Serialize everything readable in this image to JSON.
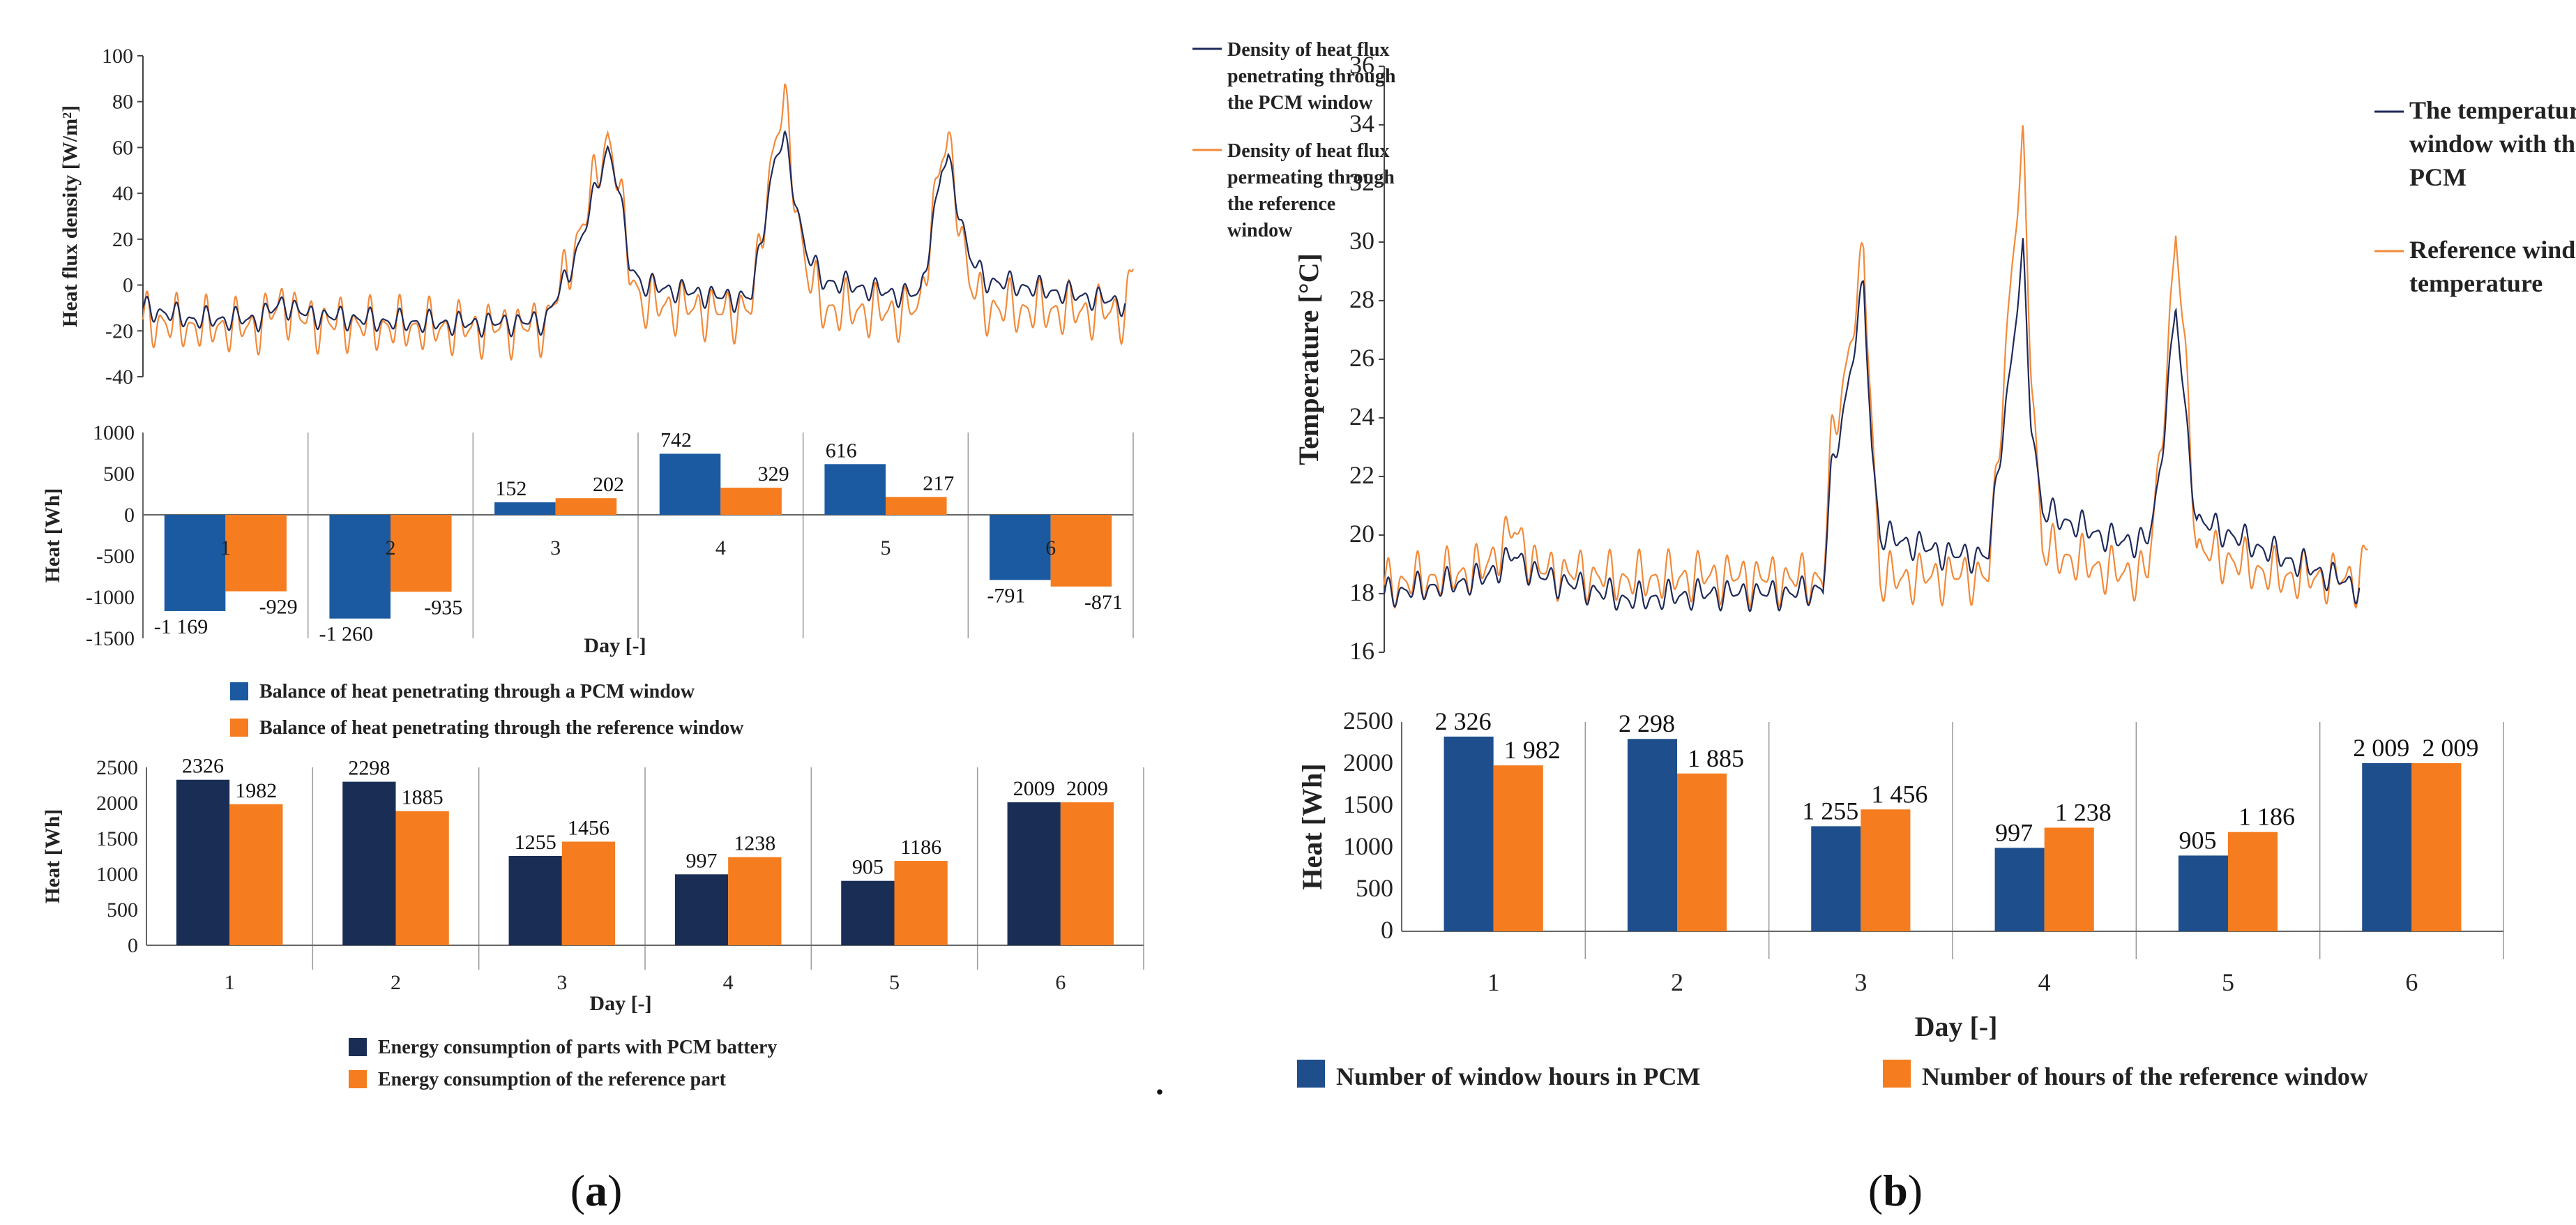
{
  "colors": {
    "pcm_line": "#1f2a5a",
    "ref_line": "#f28a3a",
    "pcm_bar_mid": "#1b5aa0",
    "pcm_bar_dark": "#1a2e55",
    "pcm_bar_b": "#1f4e8c",
    "ref_bar": "#f57c1f"
  },
  "captions": {
    "a": "(a)",
    "b": "(b)",
    "a_letter": "a",
    "b_letter": "b"
  },
  "dot": ".",
  "chart_data": [
    {
      "id": "a_heatflux",
      "type": "line",
      "ylabel": "Heat flux density  [W/m²]",
      "ylim": [
        -40,
        100
      ],
      "yticks": [
        -40,
        -20,
        0,
        20,
        40,
        60,
        80,
        100
      ],
      "grid": false,
      "x_range_days": [
        0,
        6
      ],
      "legend_position": "top-right",
      "series": [
        {
          "name": "PCM",
          "legend_lines": [
            "Density of heat flux",
            "penetrating through",
            "the PCM window"
          ],
          "baseline_points": [
            [
              0,
              -10
            ],
            [
              0.3,
              -15
            ],
            [
              0.7,
              -15
            ],
            [
              0.85,
              -8
            ],
            [
              1.0,
              -13
            ],
            [
              1.5,
              -16
            ],
            [
              2.0,
              -17
            ],
            [
              2.45,
              -16
            ],
            [
              2.6,
              5
            ],
            [
              2.7,
              25
            ],
            [
              2.78,
              45
            ],
            [
              2.84,
              60
            ],
            [
              2.9,
              45
            ],
            [
              2.97,
              10
            ],
            [
              3.05,
              0
            ],
            [
              3.6,
              -6
            ],
            [
              3.72,
              -5
            ],
            [
              3.8,
              30
            ],
            [
              3.86,
              55
            ],
            [
              3.92,
              64
            ],
            [
              3.98,
              40
            ],
            [
              4.05,
              15
            ],
            [
              4.15,
              2
            ],
            [
              4.6,
              -4
            ],
            [
              4.75,
              -4
            ],
            [
              4.82,
              25
            ],
            [
              4.88,
              50
            ],
            [
              4.92,
              55
            ],
            [
              4.98,
              35
            ],
            [
              5.05,
              12
            ],
            [
              5.15,
              2
            ],
            [
              6.0,
              -8
            ]
          ],
          "amplitude": 6
        },
        {
          "name": "Reference",
          "legend_lines": [
            "Density of heat flux",
            "permeating through",
            "the reference",
            "window"
          ],
          "baseline_points": [
            [
              0,
              -15
            ],
            [
              0.3,
              -18
            ],
            [
              0.7,
              -18
            ],
            [
              0.85,
              -8
            ],
            [
              1.0,
              -16
            ],
            [
              1.5,
              -18
            ],
            [
              2.0,
              -19
            ],
            [
              2.45,
              -18
            ],
            [
              2.6,
              8
            ],
            [
              2.7,
              30
            ],
            [
              2.78,
              50
            ],
            [
              2.84,
              65
            ],
            [
              2.9,
              48
            ],
            [
              2.97,
              8
            ],
            [
              3.05,
              -8
            ],
            [
              3.6,
              -12
            ],
            [
              3.72,
              -10
            ],
            [
              3.8,
              35
            ],
            [
              3.86,
              62
            ],
            [
              3.92,
              80
            ],
            [
              3.98,
              42
            ],
            [
              4.05,
              8
            ],
            [
              4.15,
              -10
            ],
            [
              4.6,
              -12
            ],
            [
              4.75,
              -10
            ],
            [
              4.82,
              30
            ],
            [
              4.88,
              55
            ],
            [
              4.92,
              62
            ],
            [
              4.98,
              35
            ],
            [
              5.05,
              0
            ],
            [
              5.15,
              -10
            ],
            [
              6.0,
              -12
            ],
            [
              6.05,
              8
            ]
          ],
          "amplitude": 14
        }
      ]
    },
    {
      "id": "a_balance",
      "type": "bar",
      "ylabel": "Heat [Wh]",
      "xlabel": "Day [-]",
      "ylim": [
        -1500,
        1000
      ],
      "yticks": [
        -1500,
        -1000,
        -500,
        0,
        500,
        1000
      ],
      "categories": [
        "1",
        "2",
        "3",
        "4",
        "5",
        "6"
      ],
      "legend_position": "bottom",
      "series": [
        {
          "name": "Balance of heat penetrating through a PCM window",
          "values": [
            -1169,
            -1260,
            152,
            742,
            616,
            -791
          ],
          "labels": [
            "-1 169",
            "-1 260",
            "152",
            "742",
            "616",
            "-791"
          ]
        },
        {
          "name": "Balance of heat penetrating through the reference window",
          "values": [
            -929,
            -935,
            202,
            329,
            217,
            -871
          ],
          "labels": [
            "-929",
            "-935",
            "202",
            "329",
            "217",
            "-871"
          ]
        }
      ]
    },
    {
      "id": "a_energy",
      "type": "bar",
      "ylabel": "Heat [Wh]",
      "xlabel": "Day [-]",
      "ylim": [
        0,
        2500
      ],
      "yticks": [
        0,
        500,
        1000,
        1500,
        2000,
        2500
      ],
      "categories": [
        "1",
        "2",
        "3",
        "4",
        "5",
        "6"
      ],
      "legend_position": "bottom",
      "series": [
        {
          "name": "Energy consumption of parts with PCM battery",
          "values": [
            2326,
            2298,
            1255,
            997,
            905,
            2009
          ],
          "labels": [
            "2326",
            "2298",
            "1255",
            "997",
            "905",
            "2009"
          ]
        },
        {
          "name": "Energy consumption of the reference part",
          "values": [
            1982,
            1885,
            1456,
            1238,
            1186,
            2009
          ],
          "labels": [
            "1982",
            "1885",
            "1456",
            "1238",
            "1186",
            "2009"
          ]
        }
      ]
    },
    {
      "id": "b_temperature",
      "type": "line",
      "ylabel": "Temperature [°C]",
      "ylim": [
        16,
        36
      ],
      "yticks": [
        16,
        18,
        20,
        22,
        24,
        26,
        28,
        30,
        32,
        34,
        36
      ],
      "grid": false,
      "x_range_days": [
        0,
        6
      ],
      "legend_position": "top-right",
      "series": [
        {
          "name": "PCM",
          "legend_lines": [
            "The temperature",
            "window with the",
            "PCM"
          ],
          "baseline_points": [
            [
              0,
              18
            ],
            [
              0.6,
              18.5
            ],
            [
              0.8,
              19.3
            ],
            [
              0.95,
              18.6
            ],
            [
              1.5,
              17.8
            ],
            [
              2.0,
              18.0
            ],
            [
              2.5,
              18.0
            ],
            [
              2.7,
              18.2
            ],
            [
              2.75,
              22
            ],
            [
              2.85,
              25
            ],
            [
              2.95,
              28.5
            ],
            [
              3.0,
              23
            ],
            [
              3.05,
              20.0
            ],
            [
              3.5,
              19.3
            ],
            [
              3.72,
              19.3
            ],
            [
              3.78,
              22.5
            ],
            [
              3.86,
              26
            ],
            [
              3.93,
              29.6
            ],
            [
              3.98,
              24
            ],
            [
              4.05,
              20.8
            ],
            [
              4.5,
              19.8
            ],
            [
              4.7,
              19.8
            ],
            [
              4.76,
              21.5
            ],
            [
              4.82,
              25
            ],
            [
              4.87,
              27.8
            ],
            [
              4.93,
              24
            ],
            [
              5.0,
              20.5
            ],
            [
              5.5,
              19.3
            ],
            [
              6.0,
              18.2
            ]
          ],
          "amplitude": 0.6
        },
        {
          "name": "Reference",
          "legend_lines": [
            "Reference window",
            "temperature"
          ],
          "baseline_points": [
            [
              0,
              18.3
            ],
            [
              0.6,
              18.8
            ],
            [
              0.8,
              20.2
            ],
            [
              0.95,
              18.8
            ],
            [
              1.5,
              18.5
            ],
            [
              2.0,
              18.6
            ],
            [
              2.5,
              18.5
            ],
            [
              2.7,
              18.5
            ],
            [
              2.75,
              23
            ],
            [
              2.85,
              26
            ],
            [
              2.95,
              29.5
            ],
            [
              3.0,
              24
            ],
            [
              3.05,
              18.5
            ],
            [
              3.5,
              18.6
            ],
            [
              3.72,
              18.6
            ],
            [
              3.78,
              23
            ],
            [
              3.86,
              29
            ],
            [
              3.93,
              33.2
            ],
            [
              3.98,
              26
            ],
            [
              4.05,
              19.5
            ],
            [
              4.5,
              18.7
            ],
            [
              4.7,
              18.7
            ],
            [
              4.76,
              22
            ],
            [
              4.82,
              26
            ],
            [
              4.87,
              30.3
            ],
            [
              4.93,
              26
            ],
            [
              5.0,
              19.5
            ],
            [
              5.5,
              18.6
            ],
            [
              6.0,
              18.5
            ],
            [
              6.05,
              19.6
            ]
          ],
          "amplitude": 1.0
        }
      ]
    },
    {
      "id": "b_hours",
      "type": "bar",
      "ylabel": "Heat [Wh]",
      "xlabel": "Day [-]",
      "ylim": [
        0,
        2500
      ],
      "yticks": [
        0,
        500,
        1000,
        1500,
        2000,
        2500
      ],
      "categories": [
        "1",
        "2",
        "3",
        "4",
        "5",
        "6"
      ],
      "legend_position": "bottom",
      "series": [
        {
          "name": "Number of window hours in PCM",
          "values": [
            2326,
            2298,
            1255,
            997,
            905,
            2009
          ],
          "labels": [
            "2 326",
            "2 298",
            "1 255",
            "997",
            "905",
            "2 009"
          ]
        },
        {
          "name": "Number of hours of the reference window",
          "values": [
            1982,
            1885,
            1456,
            1238,
            1186,
            2009
          ],
          "labels": [
            "1 982",
            "1 885",
            "1 456",
            "1 238",
            "1 186",
            "2 009"
          ]
        }
      ]
    }
  ]
}
